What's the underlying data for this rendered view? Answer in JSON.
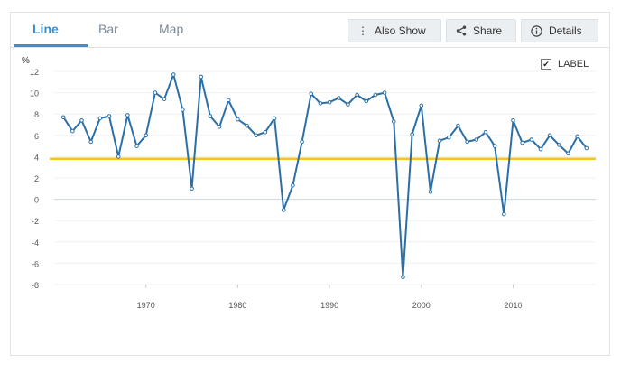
{
  "tabs": [
    {
      "label": "Line",
      "active": true
    },
    {
      "label": "Bar",
      "active": false
    },
    {
      "label": "Map",
      "active": false
    }
  ],
  "actions": {
    "also_show": {
      "label": "Also Show",
      "icon": "kebab-icon"
    },
    "share": {
      "label": "Share",
      "icon": "share-icon"
    },
    "details": {
      "label": "Details",
      "icon": "info-icon"
    }
  },
  "legend": {
    "label": "LABEL",
    "checked": true
  },
  "colors": {
    "line": "#2a6fa8",
    "reference_line": "#f5c518",
    "accent": "#3a8fd0"
  },
  "chart_data": {
    "type": "line",
    "ylabel": "%",
    "ylim": [
      -8,
      12
    ],
    "xlim": [
      1960,
      2019
    ],
    "yticks": [
      12,
      10,
      8,
      6,
      4,
      2,
      0,
      -2,
      -4,
      -6,
      -8
    ],
    "xticks": [
      1970,
      1980,
      1990,
      2000,
      2010
    ],
    "grid": true,
    "legend_position": "top-right",
    "reference_line": 3.8,
    "series": [
      {
        "x": [
          1961,
          1962,
          1963,
          1964,
          1965,
          1966,
          1967,
          1968,
          1969,
          1970,
          1971,
          1972,
          1973,
          1974,
          1975,
          1976,
          1977,
          1978,
          1979,
          1980,
          1981,
          1982,
          1983,
          1984,
          1985,
          1986,
          1987,
          1988,
          1989,
          1990,
          1991,
          1992,
          1993,
          1994,
          1995,
          1996,
          1997,
          1998,
          1999,
          2000,
          2001,
          2002,
          2003,
          2004,
          2005,
          2006,
          2007,
          2008,
          2009,
          2010,
          2011,
          2012,
          2013,
          2014,
          2015,
          2016,
          2017,
          2018
        ],
        "values": [
          7.7,
          6.4,
          7.4,
          5.4,
          7.6,
          7.8,
          4.0,
          7.9,
          5.0,
          6.0,
          10.0,
          9.4,
          11.7,
          8.4,
          1.0,
          11.5,
          7.8,
          6.8,
          9.3,
          7.5,
          6.9,
          6.0,
          6.3,
          7.6,
          -1.0,
          1.3,
          5.4,
          9.9,
          9.0,
          9.1,
          9.5,
          8.9,
          9.8,
          9.2,
          9.8,
          10.0,
          7.3,
          -7.3,
          6.1,
          8.8,
          0.7,
          5.5,
          5.8,
          6.9,
          5.4,
          5.6,
          6.3,
          5.0,
          -1.4,
          7.4,
          5.3,
          5.6,
          4.7,
          6.0,
          5.1,
          4.3,
          5.9,
          4.8
        ]
      }
    ]
  }
}
